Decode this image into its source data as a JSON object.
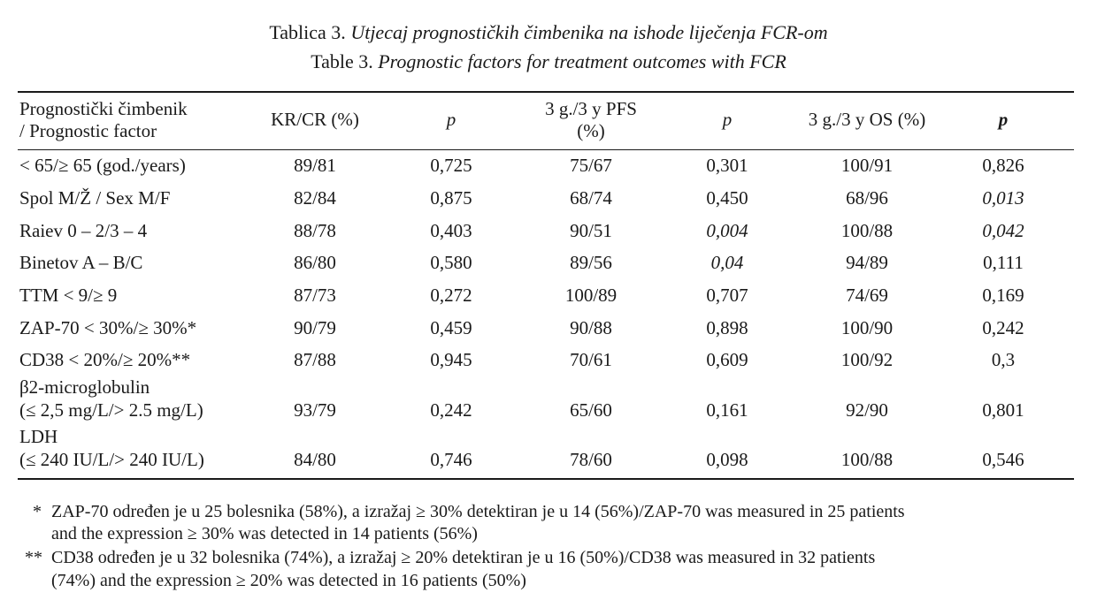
{
  "caption": {
    "hr_label": "Tablica 3.",
    "hr_title": "Utjecaj prognostičkih čimbenika na ishode liječenja FCR-om",
    "en_label": "Table 3.",
    "en_title": "Prognostic factors for treatment outcomes with FCR"
  },
  "table": {
    "headers": {
      "factor_line1": "Prognostički čimbenik",
      "factor_line2": "/ Prognostic factor",
      "kr": "KR/CR (%)",
      "p1": "p",
      "pfs_line1": "3 g./3 y PFS",
      "pfs_line2": "(%)",
      "p2": "p",
      "os": "3 g./3 y OS (%)",
      "p3": "p"
    },
    "rows": [
      {
        "factor": "< 65/≥ 65 (god./years)",
        "kr": "89/81",
        "p1": "0,725",
        "pfs": "75/67",
        "p2": "0,301",
        "os": "100/91",
        "p3": "0,826"
      },
      {
        "factor": "Spol M/Ž / Sex M/F",
        "kr": "82/84",
        "p1": "0,875",
        "pfs": "68/74",
        "p2": "0,450",
        "os": "68/96",
        "p3": "0,013"
      },
      {
        "factor": "Raiev 0 – 2/3 – 4",
        "kr": "88/78",
        "p1": "0,403",
        "pfs": "90/51",
        "p2": "0,004",
        "os": "100/88",
        "p3": "0,042"
      },
      {
        "factor": "Binetov A – B/C",
        "kr": "86/80",
        "p1": "0,580",
        "pfs": "89/56",
        "p2": "0,04",
        "os": "94/89",
        "p3": "0,111"
      },
      {
        "factor": "TTM < 9/≥ 9",
        "kr": "87/73",
        "p1": "0,272",
        "pfs": "100/89",
        "p2": "0,707",
        "os": "74/69",
        "p3": "0,169"
      },
      {
        "factor": "ZAP-70 < 30%/≥ 30%*",
        "kr": "90/79",
        "p1": "0,459",
        "pfs": "90/88",
        "p2": "0,898",
        "os": "100/90",
        "p3": "0,242"
      },
      {
        "factor": "CD38 < 20%/≥ 20%**",
        "kr": "87/88",
        "p1": "0,945",
        "pfs": "70/61",
        "p2": "0,609",
        "os": "100/92",
        "p3": "0,3"
      },
      {
        "factor_line1": "β2-microglobulin",
        "factor_line2": "(≤ 2,5 mg/L/> 2.5 mg/L)",
        "kr": "93/79",
        "p1": "0,242",
        "pfs": "65/60",
        "p2": "0,161",
        "os": "92/90",
        "p3": "0,801"
      },
      {
        "factor_line1": "LDH",
        "factor_line2": "(≤ 240 IU/L/> 240 IU/L)",
        "kr": "84/80",
        "p1": "0,746",
        "pfs": "78/60",
        "p2": "0,098",
        "os": "100/88",
        "p3": "0,546"
      }
    ]
  },
  "footnotes": [
    {
      "marker": "*",
      "line1": "ZAP-70 određen je u 25 bolesnika (58%), a izražaj ≥ 30% detektiran je u 14 (56%)/ZAP-70 was measured in 25 patients",
      "line2": "and the expression ≥ 30% was detected in 14 patients (56%)"
    },
    {
      "marker": "**",
      "line1": "CD38 određen je u 32 bolesnika (74%), a izražaj ≥ 20% detektiran je u 16 (50%)/CD38 was measured in 32 patients",
      "line2": "(74%) and the expression ≥ 20% was detected in 16 patients (50%)"
    }
  ]
}
